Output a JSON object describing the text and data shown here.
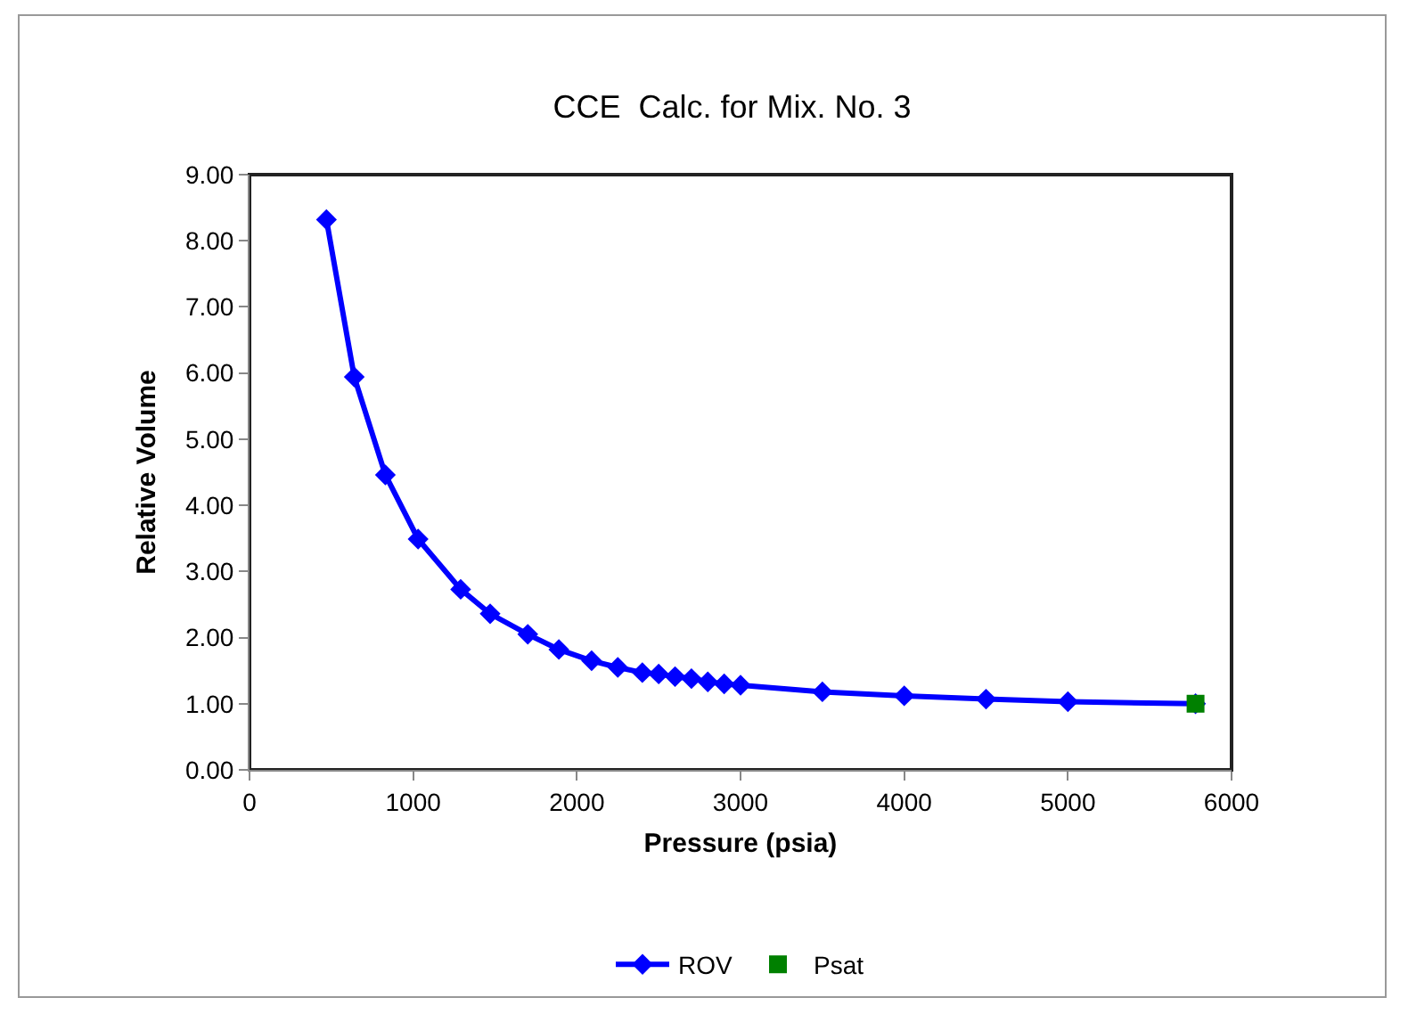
{
  "chart_data": {
    "type": "line",
    "title": "CCE  Calc. for Mix. No. 3",
    "xlabel": "Pressure (psia)",
    "ylabel": "Relative Volume",
    "xlim": [
      0,
      6000
    ],
    "xticks": [
      0,
      1000,
      2000,
      3000,
      4000,
      5000,
      6000
    ],
    "ylim": [
      0,
      9
    ],
    "yticks": [
      {
        "value": 0,
        "label": "0.00"
      },
      {
        "value": 1,
        "label": "1.00"
      },
      {
        "value": 2,
        "label": "2.00"
      },
      {
        "value": 3,
        "label": "3.00"
      },
      {
        "value": 4,
        "label": "4.00"
      },
      {
        "value": 5,
        "label": "5.00"
      },
      {
        "value": 6,
        "label": "6.00"
      },
      {
        "value": 7,
        "label": "7.00"
      },
      {
        "value": 8,
        "label": "8.00"
      },
      {
        "value": 9,
        "label": "9.00"
      }
    ],
    "grid": false,
    "legend": "bottom",
    "line_style": "solid",
    "series": [
      {
        "name": "ROV",
        "color": "#0000ff",
        "marker": "diamond",
        "x": [
          470,
          640,
          830,
          1030,
          1290,
          1470,
          1700,
          1890,
          2090,
          2250,
          2400,
          2500,
          2600,
          2700,
          2800,
          2900,
          3000,
          3500,
          4000,
          4500,
          5000,
          5780
        ],
        "values": [
          8.32,
          5.94,
          4.46,
          3.49,
          2.73,
          2.36,
          2.05,
          1.82,
          1.65,
          1.55,
          1.47,
          1.45,
          1.41,
          1.38,
          1.33,
          1.3,
          1.28,
          1.18,
          1.12,
          1.07,
          1.03,
          1.0
        ]
      },
      {
        "name": "Psat",
        "type": "scatter",
        "color": "#008000",
        "marker": "square",
        "x": [
          5780
        ],
        "values": [
          1.0
        ]
      }
    ]
  }
}
